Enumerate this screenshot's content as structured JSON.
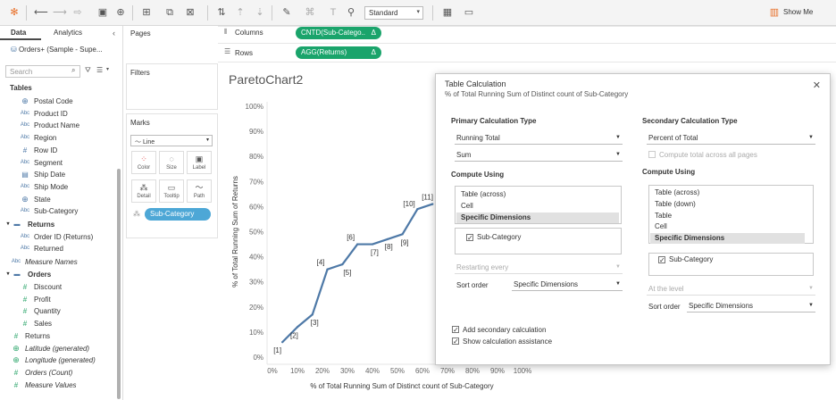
{
  "toolbar": {
    "icons": [
      "tableau-logo-icon",
      "undo-icon",
      "redo-icon",
      "redo-dropdown-icon",
      "save-icon",
      "new-datasource-icon",
      "new-worksheet-icon",
      "duplicate-sheet-icon",
      "clear-sheet-icon",
      "swap-icon",
      "sort-asc-icon",
      "sort-desc-icon",
      "highlight-icon",
      "group-icon",
      "label-icon",
      "pin-icon",
      "fit-icon",
      "present-icon"
    ],
    "fit_value": "Standard",
    "show_me_label": "Show Me"
  },
  "data_pane": {
    "tab_data": "Data",
    "tab_analytics": "Analytics",
    "datasource": "Orders+ (Sample - Supe...",
    "search_placeholder": "Search",
    "tables_header": "Tables",
    "fields": [
      {
        "type": "geo",
        "label": "Postal Code",
        "italic": false
      },
      {
        "type": "abc",
        "label": "Product ID",
        "italic": false
      },
      {
        "type": "abc",
        "label": "Product Name",
        "italic": false
      },
      {
        "type": "abc",
        "label": "Region",
        "italic": false
      },
      {
        "type": "hash",
        "label": "Row ID",
        "italic": false
      },
      {
        "type": "abc",
        "label": "Segment",
        "italic": false
      },
      {
        "type": "date",
        "label": "Ship Date",
        "italic": false
      },
      {
        "type": "abc",
        "label": "Ship Mode",
        "italic": false
      },
      {
        "type": "geo",
        "label": "State",
        "italic": false
      },
      {
        "type": "abc",
        "label": "Sub-Category",
        "italic": false
      }
    ],
    "returns_header": "Returns",
    "returns_fields": [
      {
        "type": "abc",
        "label": "Order ID (Returns)"
      },
      {
        "type": "abc",
        "label": "Returned"
      }
    ],
    "measure_names": "Measure Names",
    "orders_header": "Orders",
    "orders_fields": [
      {
        "type": "hash",
        "label": "Discount"
      },
      {
        "type": "hash",
        "label": "Profit"
      },
      {
        "type": "hash",
        "label": "Quantity"
      },
      {
        "type": "hash",
        "label": "Sales"
      }
    ],
    "extra_fields": [
      {
        "type": "hash",
        "label": "Returns",
        "italic": false
      },
      {
        "type": "geo",
        "label": "Latitude (generated)",
        "italic": true
      },
      {
        "type": "geo",
        "label": "Longitude (generated)",
        "italic": true
      },
      {
        "type": "hash",
        "label": "Orders (Count)",
        "italic": true
      },
      {
        "type": "hash",
        "label": "Measure Values",
        "italic": true
      }
    ]
  },
  "shelves": {
    "pages": "Pages",
    "filters": "Filters",
    "marks": "Marks",
    "mark_type": "Line",
    "mark_buttons": [
      "Color",
      "Size",
      "Label",
      "Detail",
      "Tooltip",
      "Path"
    ],
    "mark_pill": "Sub-Category",
    "columns_label": "Columns",
    "rows_label": "Rows",
    "columns_pill": "CNTD(Sub-Catego..",
    "rows_pill": "AGG(Returns)",
    "delta": "Δ"
  },
  "viz": {
    "title": "ParetoChart2"
  },
  "chart_data": {
    "type": "line",
    "xlabel": "% of Total Running Sum of Distinct count of Sub-Category",
    "ylabel": "% of Total Running Sum of Returns",
    "x_ticks": [
      "0%",
      "10%",
      "20%",
      "30%",
      "40%",
      "50%",
      "60%",
      "70%",
      "80%",
      "90%",
      "100%"
    ],
    "y_ticks": [
      "0%",
      "10%",
      "20%",
      "30%",
      "40%",
      "50%",
      "60%",
      "70%",
      "80%",
      "90%",
      "100%"
    ],
    "xlim": [
      0,
      100
    ],
    "ylim": [
      0,
      100
    ],
    "points": [
      {
        "x": 4,
        "y": 6,
        "label": "[1]"
      },
      {
        "x": 10,
        "y": 12,
        "label": "[2]"
      },
      {
        "x": 16,
        "y": 17,
        "label": "[3]"
      },
      {
        "x": 22,
        "y": 35,
        "label": "[4]"
      },
      {
        "x": 28,
        "y": 37,
        "label": "[5]"
      },
      {
        "x": 34,
        "y": 45,
        "label": "[6]"
      },
      {
        "x": 40,
        "y": 45,
        "label": "[7]"
      },
      {
        "x": 46,
        "y": 47,
        "label": "[8]"
      },
      {
        "x": 52,
        "y": 49,
        "label": "[9]"
      },
      {
        "x": 58,
        "y": 59,
        "label": "[10]"
      },
      {
        "x": 64,
        "y": 61,
        "label": "[11]"
      }
    ],
    "color": "#4e79a7",
    "grid": false
  },
  "dialog": {
    "title": "Table Calculation",
    "subtitle": "% of Total Running Sum of Distinct count of Sub-Category",
    "primary_header": "Primary Calculation Type",
    "primary_type": "Running Total",
    "primary_agg": "Sum",
    "compute_using_header": "Compute Using",
    "primary_list": [
      "Table (across)",
      "Cell",
      "Specific Dimensions"
    ],
    "primary_selected": "Specific Dimensions",
    "primary_dim": "Sub-Category",
    "restarting_label": "Restarting every",
    "sort_order_label": "Sort order",
    "sort_order_value": "Specific Dimensions",
    "add_secondary": "Add secondary calculation",
    "show_assistance": "Show calculation assistance",
    "secondary_header": "Secondary Calculation Type",
    "secondary_type": "Percent of Total",
    "compute_all_pages": "Compute total across all pages",
    "secondary_compute_header": "Compute Using",
    "secondary_list": [
      "Table (across)",
      "Table (down)",
      "Table",
      "Cell",
      "Specific Dimensions"
    ],
    "secondary_selected": "Specific Dimensions",
    "secondary_dim": "Sub-Category",
    "at_level_label": "At the level",
    "secondary_sort_label": "Sort order",
    "secondary_sort_value": "Specific Dimensions"
  }
}
